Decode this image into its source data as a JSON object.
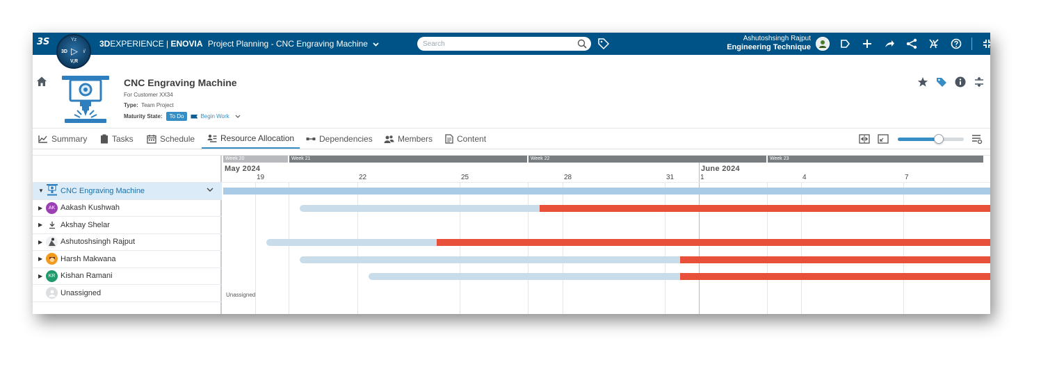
{
  "topbar": {
    "logo_text": "3S",
    "compass": {
      "top": "Yz",
      "left": "3D",
      "right": "i/",
      "bottom": "V,R"
    },
    "brand_bold": "3D",
    "brand_rest": "EXPERIENCE | ",
    "brand_product": "ENOVIA",
    "app_title": "Project Planning - CNC Engraving Machine",
    "search_placeholder": "Search",
    "user_name": "Ashutoshsingh Rajput",
    "user_org": "Engineering Technique",
    "icons": [
      "user-avatar-icon",
      "bookmark-tag-icon",
      "add-icon",
      "share-icon",
      "share-network-icon",
      "apps-compass-icon",
      "help-icon",
      "fullscreen-icon"
    ]
  },
  "project": {
    "title": "CNC Engraving Machine",
    "subtitle": "For Customer XX34",
    "type_label": "Type:",
    "type_value": "Team Project",
    "maturity_label": "Maturity State:",
    "maturity_value": "To Do",
    "begin_work": "Begin Work"
  },
  "tabs": [
    {
      "label": "Summary",
      "icon": "chart-line-icon"
    },
    {
      "label": "Tasks",
      "icon": "clipboard-icon"
    },
    {
      "label": "Schedule",
      "icon": "calendar-icon"
    },
    {
      "label": "Resource Allocation",
      "icon": "resource-allocation-icon",
      "active": true
    },
    {
      "label": "Dependencies",
      "icon": "dependencies-icon"
    },
    {
      "label": "Members",
      "icon": "members-icon"
    },
    {
      "label": "Content",
      "icon": "content-document-icon"
    }
  ],
  "zoom_level": 0.62,
  "gantt": {
    "weeks": [
      "Week 20",
      "Week 21",
      "Week 22",
      "Week 23"
    ],
    "months": [
      "May 2024",
      "June 2024"
    ],
    "days": [
      "19",
      "22",
      "25",
      "28",
      "31",
      "1",
      "4",
      "7"
    ],
    "rows": [
      {
        "name": "CNC Engraving Machine",
        "type": "project"
      },
      {
        "name": "Aakash Kushwah",
        "initials": "AK",
        "avatar_color": "#9b3fb5"
      },
      {
        "name": "Akshay Shelar",
        "avatar": "pin-icon"
      },
      {
        "name": "Ashutoshsingh Rajput",
        "avatar": "photo-icon"
      },
      {
        "name": "Harsh Makwana",
        "avatar_color": "#f29a1d"
      },
      {
        "name": "Kishan Ramani",
        "initials": "KR",
        "avatar_color": "#1f9b6b"
      },
      {
        "name": "Unassigned",
        "avatar_color": "#d9dcdf"
      }
    ],
    "unassigned_label": "Unassigned",
    "colors": {
      "allocation": "#c9dcea",
      "overallocation": "#e8503a",
      "project": "#a9cbe6"
    }
  }
}
